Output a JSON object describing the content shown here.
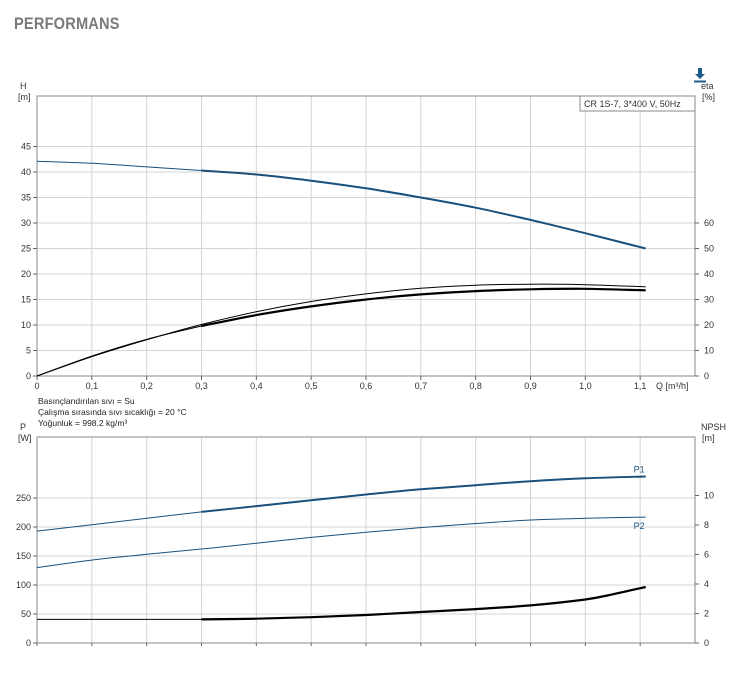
{
  "page_title": "PERFORMANS",
  "download_icon": "download-icon",
  "notes": [
    "Basınçlandırılan sıvı = Su",
    "Çalışma sırasında sıvı sıcaklığı = 20 °C",
    "Yoğunluk = 998.2 kg/m³"
  ],
  "chart_data": [
    {
      "type": "line",
      "legend": "CR 1S-7, 3*400 V, 50Hz",
      "ylabel_left": [
        "H",
        "[m]"
      ],
      "ylabel_right": [
        "eta",
        "[%]"
      ],
      "xlabel": "Q [m³/h]",
      "xlim": [
        0,
        1.2
      ],
      "ylim_left": [
        0,
        50
      ],
      "ylim_right": [
        0,
        80
      ],
      "xticks": [
        "0",
        "0,1",
        "0,2",
        "0,3",
        "0,4",
        "0,5",
        "0,6",
        "0,7",
        "0,8",
        "0,9",
        "1,0",
        "1,1"
      ],
      "yticks_left": [
        "0",
        "5",
        "10",
        "15",
        "20",
        "25",
        "30",
        "35",
        "40",
        "45"
      ],
      "yticks_right": [
        "0",
        "10",
        "20",
        "30",
        "40",
        "50",
        "60"
      ],
      "grid": true,
      "series": [
        {
          "axis": "left",
          "segments": [
            {
              "width": 1,
              "x": [
                0,
                0.1,
                0.2,
                0.3
              ],
              "y": [
                42.1,
                41.7,
                41.0,
                40.3
              ]
            },
            {
              "width": 2,
              "x": [
                0.3,
                0.4,
                0.5,
                0.6,
                0.7,
                0.8,
                0.9,
                1.0,
                1.11
              ],
              "y": [
                40.3,
                39.5,
                38.3,
                36.8,
                35.0,
                33.0,
                30.6,
                28.0,
                25.0
              ]
            }
          ]
        },
        {
          "axis": "left",
          "segments": [
            {
              "width": 1,
              "x": [
                0,
                0.1,
                0.2,
                0.3,
                0.4,
                0.5,
                0.6,
                0.7,
                0.8,
                0.9,
                1.0,
                1.11
              ],
              "y": [
                0,
                3.8,
                7.1,
                10.1,
                12.6,
                14.6,
                16.1,
                17.2,
                17.8,
                18.0,
                17.9,
                17.5
              ]
            }
          ]
        },
        {
          "axis": "right",
          "segments": [
            {
              "width": 1,
              "x": [
                0,
                0.1,
                0.2,
                0.3
              ],
              "y": [
                0,
                7.8,
                14.4,
                19.6
              ]
            },
            {
              "width": 2.2,
              "x": [
                0.3,
                0.4,
                0.5,
                0.6,
                0.7,
                0.8,
                0.9,
                1.0,
                1.11
              ],
              "y": [
                19.6,
                23.9,
                27.3,
                30.0,
                32.0,
                33.3,
                34.0,
                34.2,
                33.6
              ]
            }
          ]
        }
      ]
    },
    {
      "type": "line",
      "ylabel_left": [
        "P",
        "[W]"
      ],
      "ylabel_right": [
        "NPSH",
        "[m]"
      ],
      "xlim": [
        0,
        1.2
      ],
      "ylim_left": [
        0,
        300
      ],
      "ylim_right": [
        0,
        12
      ],
      "yticks_left": [
        "0",
        "50",
        "100",
        "150",
        "200",
        "250"
      ],
      "yticks_right": [
        "0",
        "2",
        "4",
        "6",
        "8",
        "10"
      ],
      "grid": true,
      "series": [
        {
          "name": "P1",
          "axis": "left",
          "segments": [
            {
              "width": 1,
              "x": [
                0,
                0.1,
                0.2,
                0.3
              ],
              "y": [
                193,
                204,
                215,
                226
              ]
            },
            {
              "width": 2,
              "x": [
                0.3,
                0.4,
                0.5,
                0.6,
                0.7,
                0.8,
                0.9,
                1.0,
                1.11
              ],
              "y": [
                226,
                236,
                246,
                256,
                265,
                272,
                279,
                284,
                287
              ]
            }
          ]
        },
        {
          "name": "P2",
          "axis": "left",
          "segments": [
            {
              "width": 1,
              "x": [
                0,
                0.1,
                0.2,
                0.3,
                0.4,
                0.5,
                0.6,
                0.7,
                0.8,
                0.9,
                1.0,
                1.11
              ],
              "y": [
                130,
                143,
                153,
                162,
                172,
                182,
                191,
                199,
                206,
                212,
                215,
                217
              ]
            }
          ]
        },
        {
          "axis": "right",
          "segments": [
            {
              "width": 1,
              "x": [
                0,
                0.1,
                0.2,
                0.3
              ],
              "y": [
                1.6,
                1.6,
                1.6,
                1.6
              ]
            },
            {
              "width": 2.2,
              "x": [
                0.3,
                0.4,
                0.5,
                0.6,
                0.7,
                0.8,
                0.9,
                1.0,
                1.05,
                1.11
              ],
              "y": [
                1.6,
                1.65,
                1.75,
                1.9,
                2.1,
                2.3,
                2.55,
                2.95,
                3.3,
                3.8
              ]
            }
          ]
        }
      ]
    }
  ]
}
